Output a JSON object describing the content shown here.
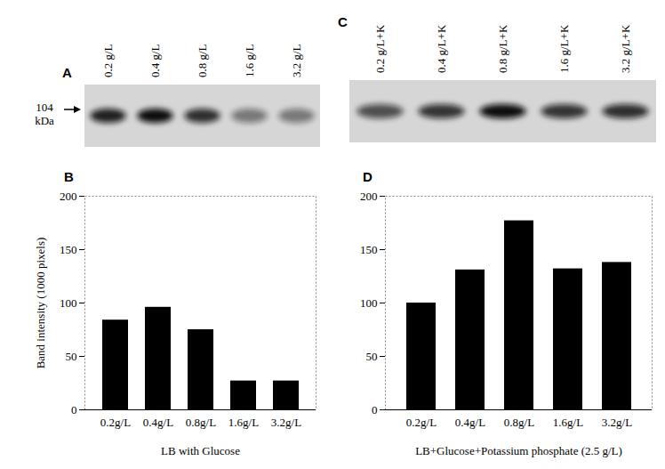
{
  "blots": [
    {
      "panel": "A",
      "lanes": [
        "0.2 g/L",
        "0.4 g/L",
        "0.8 g/L",
        "1.6 g/L",
        "3.2 g/L"
      ],
      "marker_label": "104\nkDa"
    },
    {
      "panel": "C",
      "lanes": [
        "0.2 g/L+K",
        "0.4 g/L+K",
        "0.8 g/L+K",
        "1.6 g/L+K",
        "3.2 g/L+K"
      ]
    }
  ],
  "chart_data": [
    {
      "type": "bar",
      "title": "B",
      "categories": [
        "0.2g/L",
        "0.4g/L",
        "0.8g/L",
        "1.6g/L",
        "3.2g/L"
      ],
      "values": [
        84,
        96,
        75,
        27,
        27
      ],
      "color": "#000000",
      "y_label": "Band intensity (1000 pixels)",
      "x_label": "LB with Glucose",
      "ylim": [
        0,
        200
      ],
      "yticks": [
        0,
        50,
        100,
        150,
        200
      ]
    },
    {
      "type": "bar",
      "title": "D",
      "categories": [
        "0.2g/L",
        "0.4g/L",
        "0.8g/L",
        "1.6g/L",
        "3.2g/L"
      ],
      "values": [
        100,
        131,
        177,
        132,
        138
      ],
      "color": "#000000",
      "x_label": "LB+Glucose+Potassium phosphate (2.5 g/L)",
      "ylim": [
        0,
        200
      ],
      "yticks": [
        0,
        50,
        100,
        150,
        200
      ]
    }
  ]
}
